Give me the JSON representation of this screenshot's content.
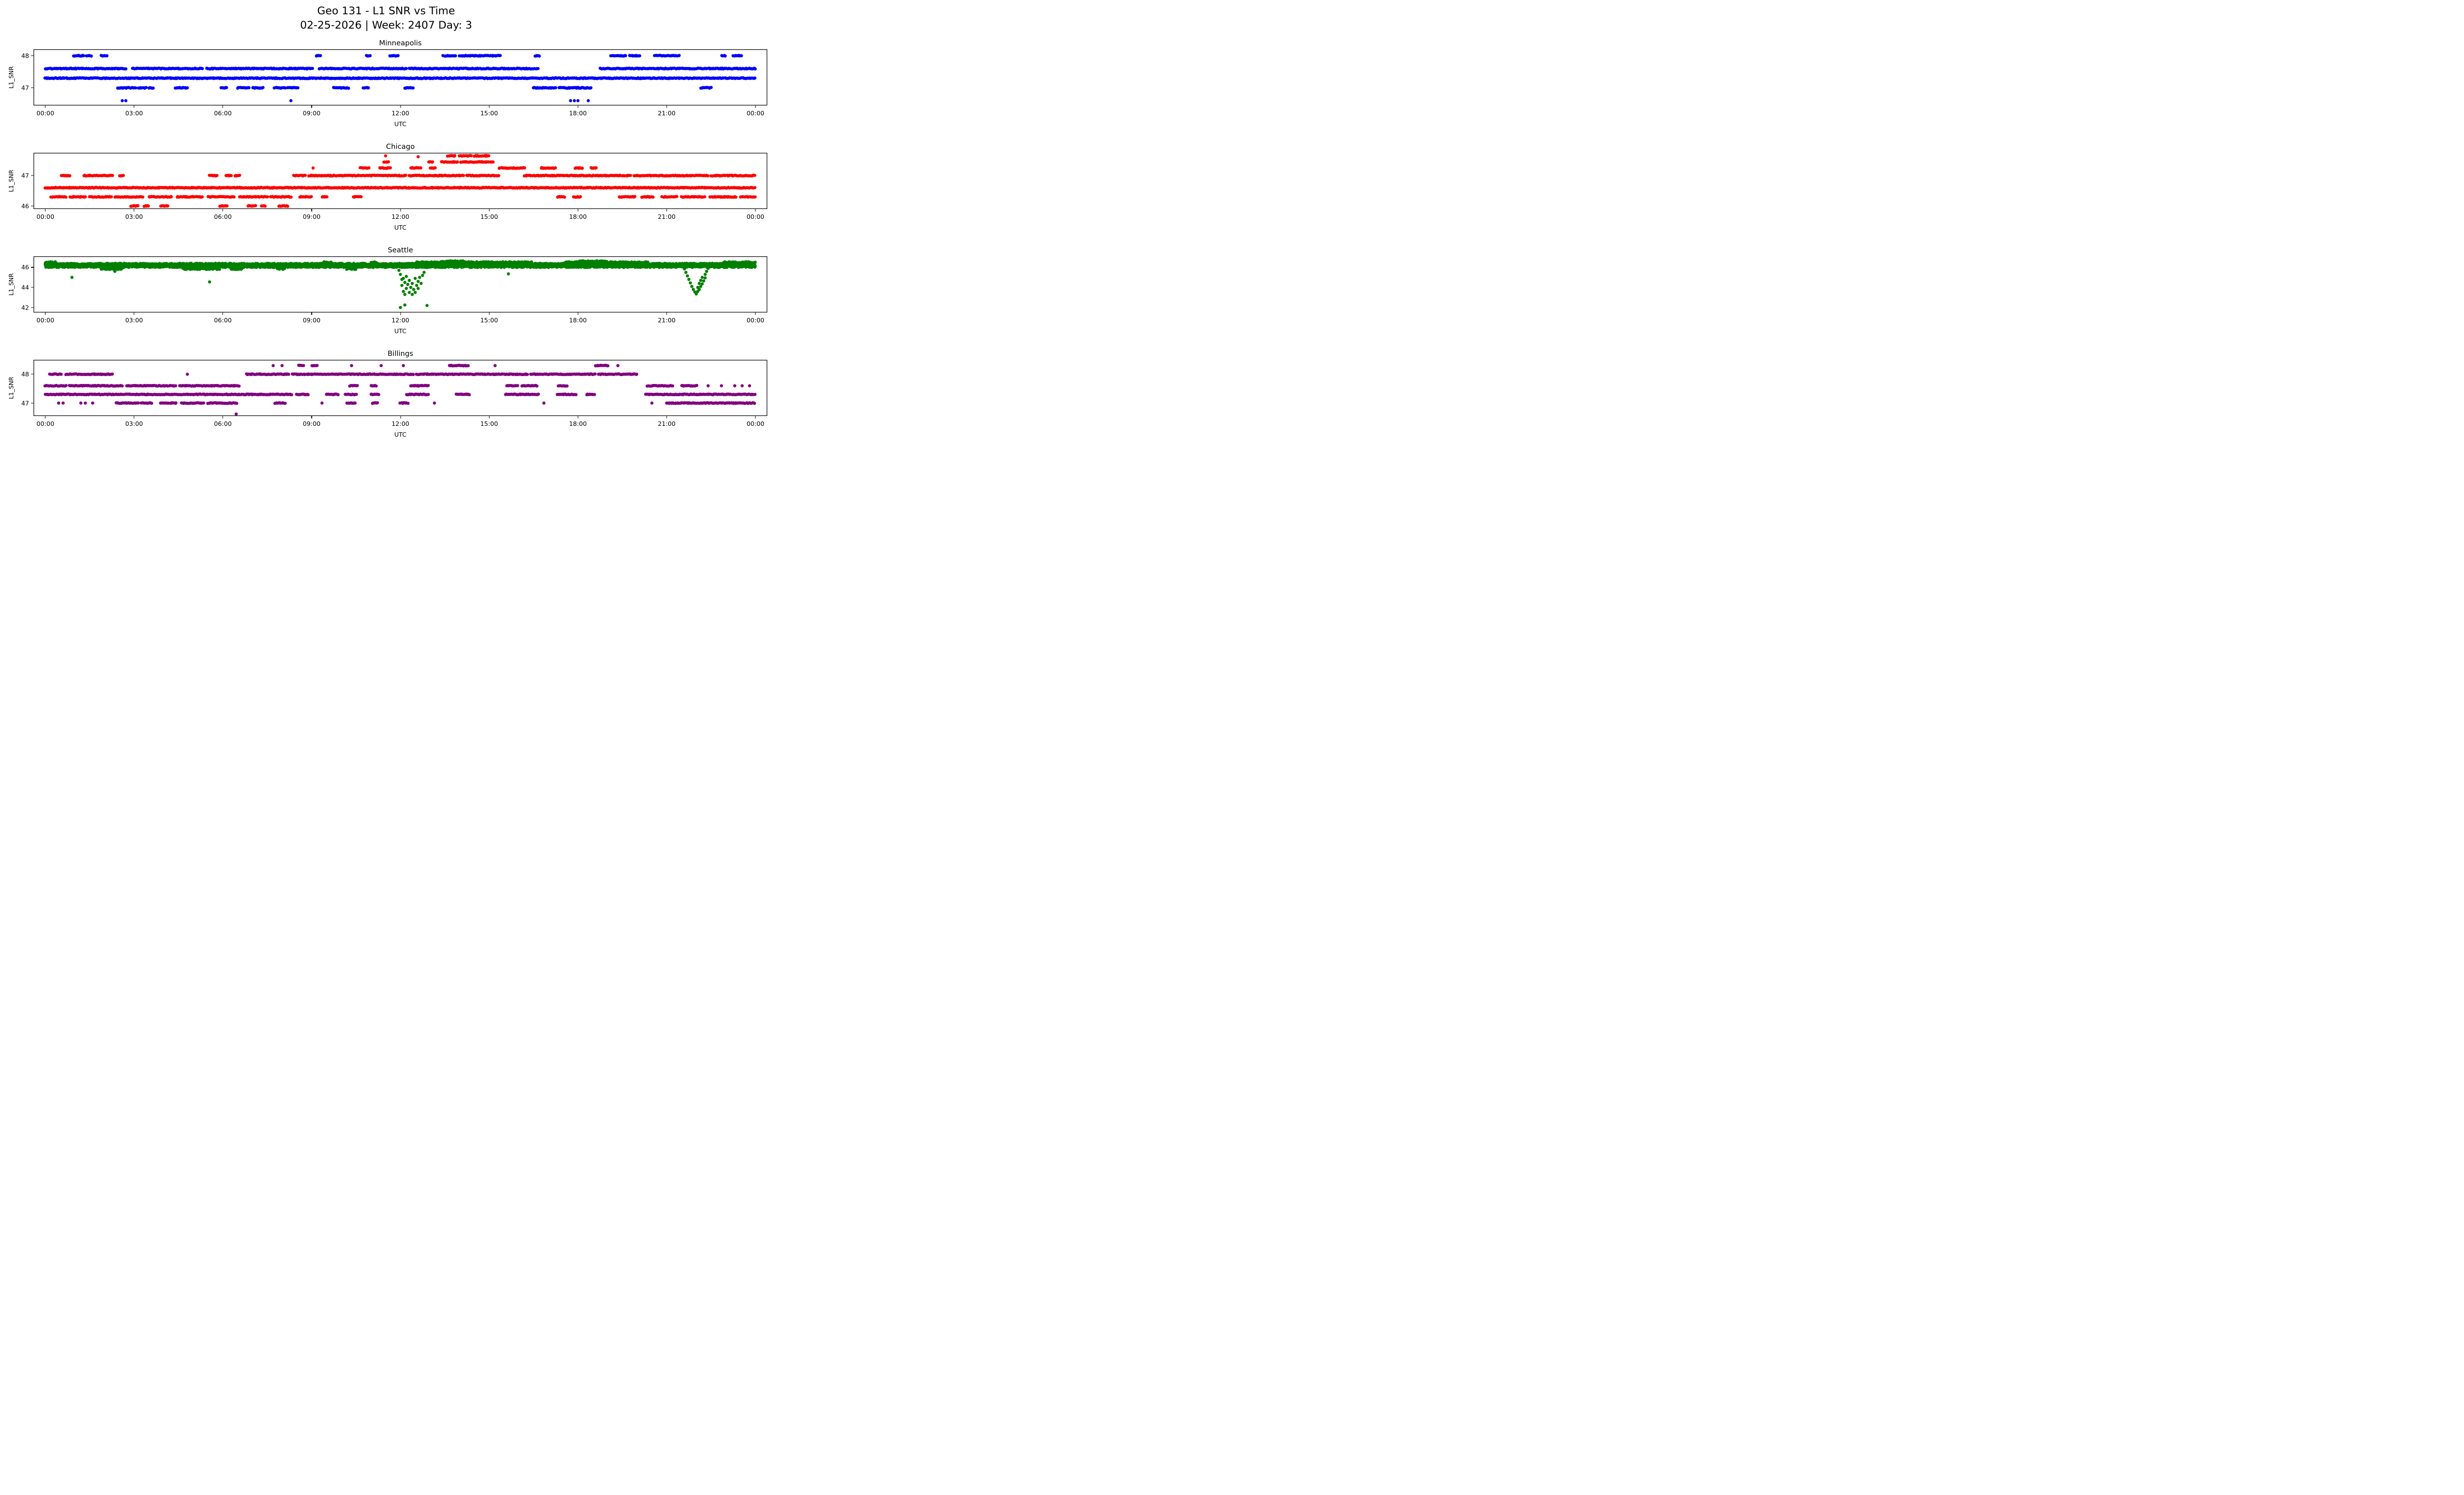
{
  "figure": {
    "suptitle_line1": "Geo 131 - L1 SNR vs Time",
    "suptitle_line2": "02-25-2026 | Week: 2407 Day: 3"
  },
  "chart_data": [
    {
      "type": "scatter",
      "title": "Minneapolis",
      "color": "#0000ff",
      "color_name": "blue",
      "xlabel": "UTC",
      "ylabel": "L1_SNR",
      "xlim": [
        -0.4,
        24.4
      ],
      "ylim": [
        46.45,
        48.2
      ],
      "xticks": [
        0,
        3,
        6,
        9,
        12,
        15,
        18,
        21,
        24
      ],
      "xtick_labels": [
        "00:00",
        "03:00",
        "06:00",
        "09:00",
        "12:00",
        "15:00",
        "18:00",
        "21:00",
        "00:00"
      ],
      "yticks": [
        47,
        48
      ],
      "ytick_labels": [
        "47",
        "48"
      ],
      "marker_size": 6.4,
      "jitter": 0.012,
      "bands_format": "[L1_SNR, utc_start_hour, utc_end_hour]",
      "bands": [
        [
          47.3,
          0,
          24
        ],
        [
          47.6,
          0,
          2.75
        ],
        [
          47.6,
          2.95,
          5.3
        ],
        [
          47.6,
          5.45,
          9.05
        ],
        [
          47.6,
          9.25,
          12.2
        ],
        [
          47.6,
          12.3,
          16.65
        ],
        [
          47.6,
          18.75,
          24
        ],
        [
          48,
          0.95,
          1.3
        ],
        [
          48,
          1.4,
          1.55
        ],
        [
          48,
          1.9,
          2.1
        ],
        [
          48,
          9.15,
          9.3
        ],
        [
          48,
          10.85,
          11.0
        ],
        [
          48,
          11.65,
          11.95
        ],
        [
          48,
          13.45,
          13.9
        ],
        [
          48,
          14.0,
          15.05
        ],
        [
          48,
          15.1,
          15.4
        ],
        [
          48,
          16.55,
          16.7
        ],
        [
          48,
          19.1,
          19.65
        ],
        [
          48,
          19.75,
          20.1
        ],
        [
          48,
          20.6,
          21.0
        ],
        [
          48,
          21.05,
          21.45
        ],
        [
          48,
          22.85,
          23.0
        ],
        [
          48,
          23.25,
          23.55
        ],
        [
          47,
          2.45,
          3.05
        ],
        [
          47,
          3.15,
          3.4
        ],
        [
          47,
          3.5,
          3.65
        ],
        [
          47,
          4.4,
          4.8
        ],
        [
          47,
          5.95,
          6.15
        ],
        [
          47,
          6.5,
          6.9
        ],
        [
          47,
          7.0,
          7.35
        ],
        [
          47,
          7.75,
          8.1
        ],
        [
          47,
          8.2,
          8.55
        ],
        [
          47,
          9.75,
          10.25
        ],
        [
          47,
          10.75,
          10.95
        ],
        [
          47,
          12.15,
          12.45
        ],
        [
          47,
          16.5,
          17.25
        ],
        [
          47,
          17.35,
          18.45
        ],
        [
          47,
          22.15,
          22.5
        ]
      ],
      "outliers_format": "[utc_hour, L1_SNR]",
      "outliers": [
        [
          2.6,
          46.6
        ],
        [
          2.72,
          46.6
        ],
        [
          8.3,
          46.6
        ],
        [
          17.75,
          46.6
        ],
        [
          17.88,
          46.6
        ],
        [
          18.0,
          46.6
        ],
        [
          18.35,
          46.6
        ]
      ]
    },
    {
      "type": "scatter",
      "title": "Chicago",
      "color": "#ff0000",
      "color_name": "red",
      "xlabel": "UTC",
      "ylabel": "L1_SNR",
      "xlim": [
        -0.4,
        24.4
      ],
      "ylim": [
        45.9,
        47.75
      ],
      "xticks": [
        0,
        3,
        6,
        9,
        12,
        15,
        18,
        21,
        24
      ],
      "xtick_labels": [
        "00:00",
        "03:00",
        "06:00",
        "09:00",
        "12:00",
        "15:00",
        "18:00",
        "21:00",
        "00:00"
      ],
      "yticks": [
        46,
        47
      ],
      "ytick_labels": [
        "46",
        "47"
      ],
      "marker_size": 6.4,
      "jitter": 0.012,
      "bands_format": "[L1_SNR, utc_start_hour, utc_end_hour]",
      "bands": [
        [
          46.6,
          0,
          24
        ],
        [
          46.3,
          0.2,
          0.7
        ],
        [
          46.3,
          0.85,
          1.35
        ],
        [
          46.3,
          1.5,
          2.25
        ],
        [
          46.3,
          2.35,
          3.3
        ],
        [
          46.3,
          3.5,
          4.3
        ],
        [
          46.3,
          4.45,
          5.3
        ],
        [
          46.3,
          5.5,
          6.4
        ],
        [
          46.3,
          6.55,
          7.5
        ],
        [
          46.3,
          7.6,
          8.3
        ],
        [
          46.3,
          8.6,
          9.0
        ],
        [
          46.3,
          9.35,
          9.55
        ],
        [
          46.3,
          10.4,
          10.7
        ],
        [
          46.3,
          17.3,
          17.55
        ],
        [
          46.3,
          17.85,
          18.1
        ],
        [
          46.3,
          19.4,
          19.95
        ],
        [
          46.3,
          20.15,
          20.55
        ],
        [
          46.3,
          20.85,
          21.35
        ],
        [
          46.3,
          21.5,
          22.3
        ],
        [
          46.3,
          22.45,
          23.35
        ],
        [
          46.3,
          23.5,
          24
        ],
        [
          46,
          2.9,
          3.15
        ],
        [
          46,
          3.35,
          3.5
        ],
        [
          46,
          3.9,
          4.15
        ],
        [
          46,
          5.9,
          6.15
        ],
        [
          46,
          6.85,
          7.1
        ],
        [
          46,
          7.3,
          7.45
        ],
        [
          46,
          7.9,
          8.2
        ],
        [
          47,
          0.55,
          0.85
        ],
        [
          47,
          1.3,
          1.8
        ],
        [
          47,
          1.85,
          2.3
        ],
        [
          47,
          2.5,
          2.65
        ],
        [
          47,
          5.55,
          5.8
        ],
        [
          47,
          6.1,
          6.3
        ],
        [
          47,
          6.4,
          6.6
        ],
        [
          47,
          8.4,
          8.8
        ],
        [
          47,
          8.9,
          12.2
        ],
        [
          47,
          12.3,
          14.15
        ],
        [
          47,
          14.25,
          15.35
        ],
        [
          47,
          16.2,
          19.8
        ],
        [
          47,
          19.9,
          22.4
        ],
        [
          47,
          22.5,
          24
        ],
        [
          47.25,
          10.65,
          10.95
        ],
        [
          47.25,
          11.3,
          11.65
        ],
        [
          47.25,
          12.35,
          12.7
        ],
        [
          47.25,
          13.0,
          13.2
        ],
        [
          47.25,
          15.35,
          16.2
        ],
        [
          47.25,
          16.75,
          17.25
        ],
        [
          47.25,
          17.9,
          18.15
        ],
        [
          47.25,
          18.45,
          18.65
        ],
        [
          47.45,
          11.45,
          11.6
        ],
        [
          47.45,
          12.95,
          13.1
        ],
        [
          47.45,
          13.4,
          13.95
        ],
        [
          47.45,
          14.05,
          15.15
        ],
        [
          47.65,
          13.6,
          13.85
        ],
        [
          47.65,
          14.0,
          14.4
        ],
        [
          47.65,
          14.5,
          15.0
        ]
      ],
      "outliers_format": "[utc_hour, L1_SNR]",
      "outliers": [
        [
          11.5,
          47.65
        ],
        [
          9.05,
          47.25
        ],
        [
          12.6,
          47.62
        ]
      ]
    },
    {
      "type": "scatter",
      "title": "Seattle",
      "color": "#008000",
      "color_name": "green",
      "xlabel": "UTC",
      "ylabel": "L1_SNR",
      "xlim": [
        -0.4,
        24.4
      ],
      "ylim": [
        41.5,
        47.1
      ],
      "xticks": [
        0,
        3,
        6,
        9,
        12,
        15,
        18,
        21,
        24
      ],
      "xtick_labels": [
        "00:00",
        "03:00",
        "06:00",
        "09:00",
        "12:00",
        "15:00",
        "18:00",
        "21:00",
        "00:00"
      ],
      "yticks": [
        42,
        44,
        46
      ],
      "ytick_labels": [
        "42",
        "44",
        "46"
      ],
      "marker_size": 6.4,
      "jitter": 0.06,
      "bands_format": "[L1_SNR, utc_start_hour, utc_end_hour]",
      "bands": [
        [
          46.35,
          0,
          24
        ],
        [
          46.2,
          0,
          24
        ],
        [
          46.05,
          0,
          24
        ],
        [
          45.85,
          1.9,
          2.6
        ],
        [
          45.85,
          4.65,
          5.9
        ],
        [
          45.85,
          6.3,
          6.65
        ],
        [
          45.85,
          7.85,
          8.1
        ],
        [
          45.85,
          10.2,
          10.5
        ],
        [
          46.5,
          0,
          0.35
        ],
        [
          46.5,
          9.4,
          9.65
        ],
        [
          46.5,
          11.0,
          11.2
        ],
        [
          46.5,
          12.55,
          16.45
        ],
        [
          46.5,
          17.55,
          20.35
        ],
        [
          46.5,
          22.9,
          24
        ],
        [
          46.6,
          13.4,
          14.2
        ],
        [
          46.6,
          18.0,
          19.0
        ]
      ],
      "outliers_format": "[utc_hour, L1_SNR]",
      "outliers": [
        [
          0.9,
          45.0
        ],
        [
          2.35,
          45.6
        ],
        [
          5.55,
          44.55
        ],
        [
          15.65,
          45.35
        ],
        [
          11.95,
          45.7
        ],
        [
          12.0,
          45.3
        ],
        [
          12.0,
          42.0
        ],
        [
          12.05,
          44.8
        ],
        [
          12.05,
          44.2
        ],
        [
          12.1,
          43.6
        ],
        [
          12.1,
          44.9
        ],
        [
          12.15,
          43.3
        ],
        [
          12.15,
          42.25
        ],
        [
          12.15,
          44.5
        ],
        [
          12.2,
          43.9
        ],
        [
          12.2,
          45.1
        ],
        [
          12.25,
          44.3
        ],
        [
          12.3,
          43.5
        ],
        [
          12.3,
          44.7
        ],
        [
          12.35,
          44.0
        ],
        [
          12.4,
          43.3
        ],
        [
          12.4,
          44.4
        ],
        [
          12.45,
          43.8
        ],
        [
          12.5,
          44.9
        ],
        [
          12.5,
          43.5
        ],
        [
          12.55,
          44.2
        ],
        [
          12.6,
          44.6
        ],
        [
          12.6,
          43.9
        ],
        [
          12.65,
          45.0
        ],
        [
          12.7,
          44.4
        ],
        [
          12.75,
          45.2
        ],
        [
          12.8,
          45.5
        ],
        [
          12.9,
          42.2
        ],
        [
          21.6,
          45.85
        ],
        [
          21.65,
          45.5
        ],
        [
          21.7,
          45.15
        ],
        [
          21.75,
          44.8
        ],
        [
          21.8,
          44.45
        ],
        [
          21.85,
          44.1
        ],
        [
          21.9,
          43.8
        ],
        [
          21.95,
          43.55
        ],
        [
          22.0,
          43.35
        ],
        [
          22.05,
          43.6
        ],
        [
          22.05,
          44.0
        ],
        [
          22.1,
          43.8
        ],
        [
          22.1,
          44.4
        ],
        [
          22.15,
          44.1
        ],
        [
          22.15,
          44.7
        ],
        [
          22.2,
          44.35
        ],
        [
          22.2,
          45.0
        ],
        [
          22.25,
          44.65
        ],
        [
          22.3,
          44.95
        ],
        [
          22.3,
          45.3
        ],
        [
          22.35,
          45.6
        ],
        [
          22.4,
          45.9
        ]
      ]
    },
    {
      "type": "scatter",
      "title": "Billings",
      "color": "#800080",
      "color_name": "purple",
      "xlabel": "UTC",
      "ylabel": "L1_SNR",
      "xlim": [
        -0.4,
        24.4
      ],
      "ylim": [
        46.55,
        48.5
      ],
      "xticks": [
        0,
        3,
        6,
        9,
        12,
        15,
        18,
        21,
        24
      ],
      "xtick_labels": [
        "00:00",
        "03:00",
        "06:00",
        "09:00",
        "12:00",
        "15:00",
        "18:00",
        "21:00",
        "00:00"
      ],
      "yticks": [
        47,
        48
      ],
      "ytick_labels": [
        "47",
        "48"
      ],
      "marker_size": 6.4,
      "jitter": 0.012,
      "bands_format": "[L1_SNR, utc_start_hour, utc_end_hour]",
      "bands": [
        [
          47.3,
          0,
          8.35
        ],
        [
          47.3,
          8.5,
          8.9
        ],
        [
          47.3,
          9.5,
          9.9
        ],
        [
          47.3,
          10.15,
          10.5
        ],
        [
          47.3,
          11.0,
          11.3
        ],
        [
          47.3,
          12.2,
          12.95
        ],
        [
          47.3,
          13.9,
          14.35
        ],
        [
          47.3,
          15.55,
          16.7
        ],
        [
          47.3,
          17.3,
          17.95
        ],
        [
          47.3,
          18.3,
          18.55
        ],
        [
          47.3,
          20.3,
          24
        ],
        [
          47.6,
          0,
          0.7
        ],
        [
          47.6,
          0.8,
          2.6
        ],
        [
          47.6,
          2.75,
          4.4
        ],
        [
          47.6,
          4.55,
          6.55
        ],
        [
          47.6,
          10.3,
          10.55
        ],
        [
          47.6,
          11.0,
          11.2
        ],
        [
          47.6,
          12.35,
          12.95
        ],
        [
          47.6,
          15.6,
          15.95
        ],
        [
          47.6,
          16.1,
          16.65
        ],
        [
          47.6,
          17.35,
          17.65
        ],
        [
          47.6,
          20.35,
          21.2
        ],
        [
          47.6,
          21.5,
          22.05
        ],
        [
          48,
          0.15,
          0.55
        ],
        [
          48,
          0.7,
          2.3
        ],
        [
          48,
          6.8,
          8.25
        ],
        [
          48,
          8.35,
          12.45
        ],
        [
          48,
          12.55,
          16.3
        ],
        [
          48,
          16.4,
          18.6
        ],
        [
          48,
          18.7,
          20.0
        ],
        [
          48.3,
          8.55,
          8.75
        ],
        [
          48.3,
          9.0,
          9.2
        ],
        [
          48.3,
          13.65,
          14.3
        ],
        [
          48.3,
          18.6,
          19.05
        ],
        [
          47,
          2.4,
          3.15
        ],
        [
          47,
          3.25,
          3.6
        ],
        [
          47,
          3.9,
          4.45
        ],
        [
          47,
          4.6,
          5.35
        ],
        [
          47,
          5.5,
          6.5
        ],
        [
          47,
          7.75,
          8.1
        ],
        [
          47,
          10.2,
          10.5
        ],
        [
          47,
          11.05,
          11.25
        ],
        [
          47,
          12.0,
          12.25
        ],
        [
          47,
          21.0,
          24
        ]
      ],
      "outliers_format": "[utc_hour, L1_SNR]",
      "outliers": [
        [
          0.45,
          47
        ],
        [
          0.6,
          47
        ],
        [
          1.2,
          47
        ],
        [
          1.35,
          47
        ],
        [
          1.6,
          47
        ],
        [
          9.35,
          47
        ],
        [
          13.15,
          47
        ],
        [
          16.85,
          47
        ],
        [
          20.5,
          47
        ],
        [
          4.8,
          48
        ],
        [
          7.7,
          48.3
        ],
        [
          8.0,
          48.3
        ],
        [
          10.35,
          48.3
        ],
        [
          11.35,
          48.3
        ],
        [
          12.1,
          48.3
        ],
        [
          15.2,
          48.3
        ],
        [
          19.35,
          48.3
        ],
        [
          22.4,
          47.6
        ],
        [
          22.85,
          47.6
        ],
        [
          23.3,
          47.6
        ],
        [
          23.55,
          47.6
        ],
        [
          23.8,
          47.6
        ],
        [
          6.45,
          46.62
        ]
      ]
    }
  ]
}
